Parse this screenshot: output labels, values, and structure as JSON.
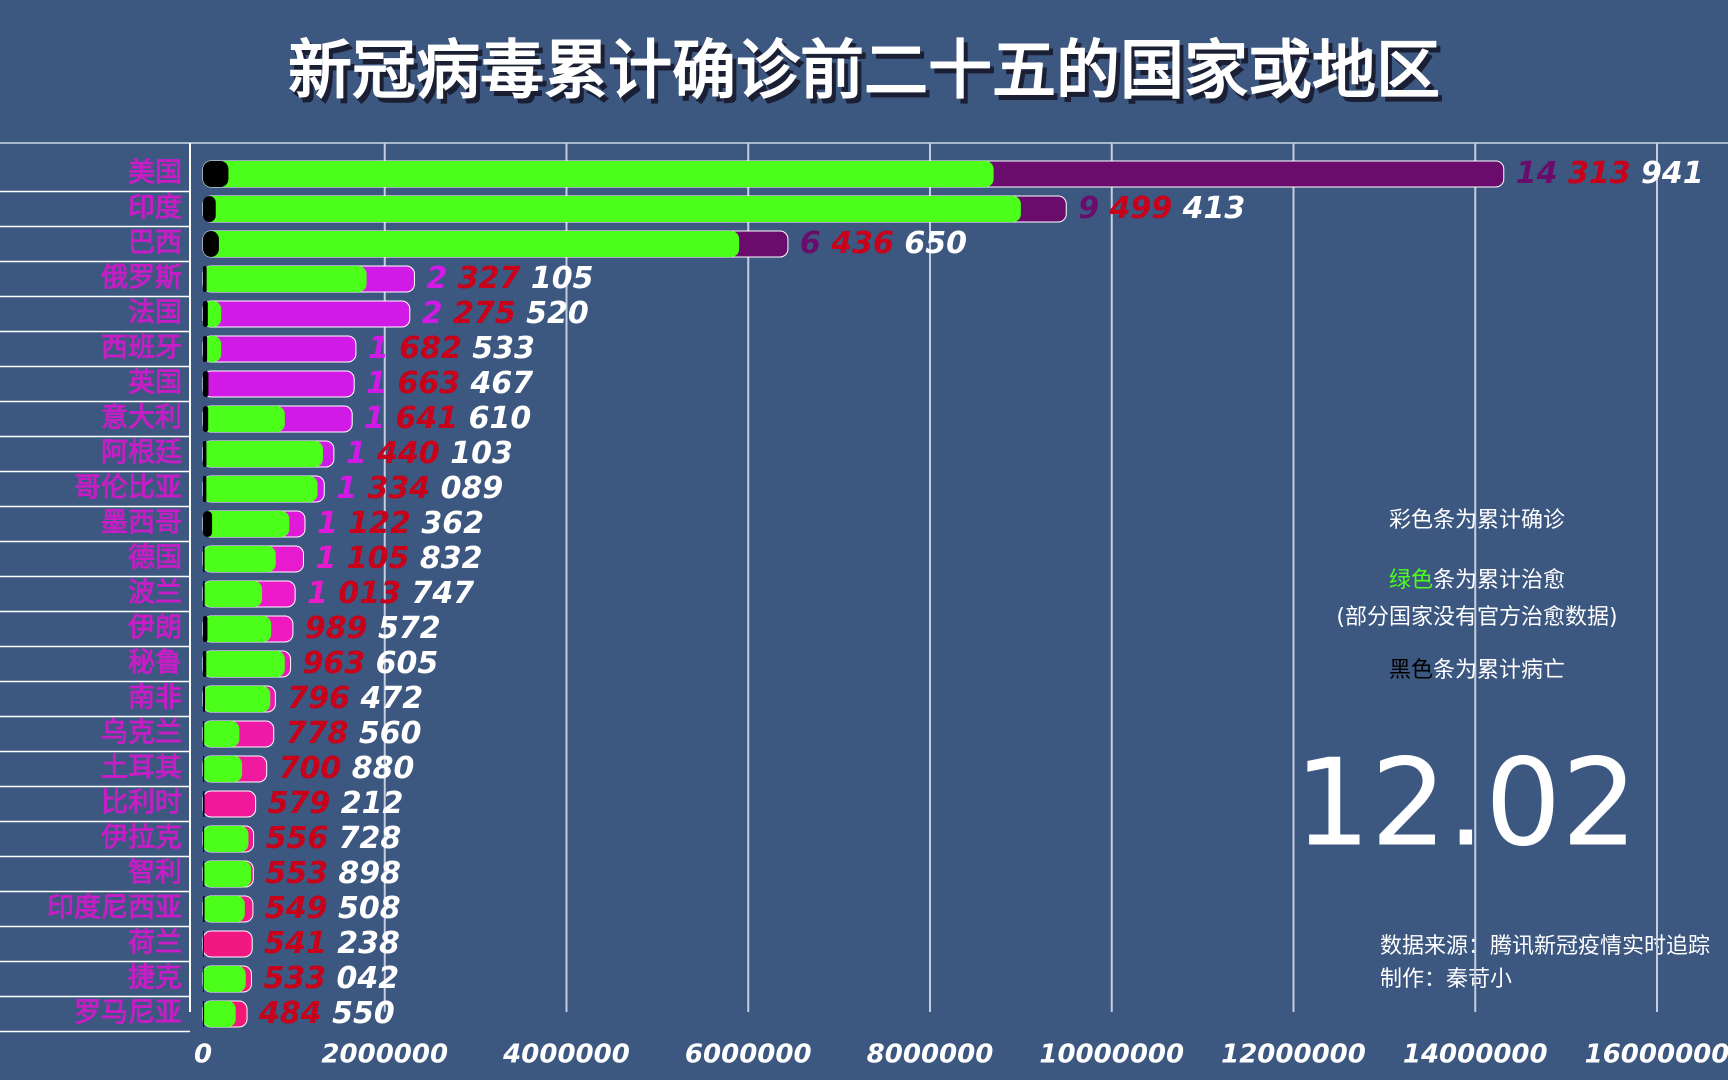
{
  "chart_data": {
    "type": "bar",
    "orientation": "horizontal",
    "title": "新冠病毒累计确诊前二十五的国家或地区",
    "categories": [
      "美国",
      "印度",
      "巴西",
      "俄罗斯",
      "法国",
      "西班牙",
      "英国",
      "意大利",
      "阿根廷",
      "哥伦比亚",
      "墨西哥",
      "德国",
      "波兰",
      "伊朗",
      "秘鲁",
      "南非",
      "乌克兰",
      "土耳其",
      "比利时",
      "伊拉克",
      "智利",
      "印度尼西亚",
      "荷兰",
      "捷克",
      "罗马尼亚"
    ],
    "series": [
      {
        "name": "彩色条为累计确诊",
        "values": [
          14313941,
          9499413,
          6436650,
          2327105,
          2275520,
          1682533,
          1663467,
          1641610,
          1440103,
          1334089,
          1122362,
          1105832,
          1013747,
          989572,
          963605,
          796472,
          778560,
          700880,
          579212,
          556728,
          553898,
          549508,
          541238,
          533042,
          484550
        ],
        "value_labels": [
          "14 313 941",
          "9 499 413",
          "6 436 650",
          "2 327 105",
          "2 275 520",
          "1 682 533",
          "1 663 467",
          "1 641 610",
          "1 440 103",
          "1 334 089",
          "1 122 362",
          "1 105 832",
          "1 013 747",
          "989 572",
          "963 605",
          "796 472",
          "778 560",
          "700 880",
          "579 212",
          "556 728",
          "553 898",
          "549 508",
          "541 238",
          "533 042",
          "484 550"
        ],
        "colors": [
          "#6a0c6c",
          "#6a0c6c",
          "#6a0c6c",
          "#d21ae6",
          "#d21ae6",
          "#d21ae6",
          "#d21ae6",
          "#d21ae6",
          "#d21ae6",
          "#d21ae6",
          "#e01ad8",
          "#e81ad0",
          "#ec1ac8",
          "#ee1ac0",
          "#ee1ab8",
          "#f01ab0",
          "#f01aa8",
          "#f01aa0",
          "#f2189a",
          "#f21894",
          "#f2188e",
          "#f21888",
          "#f21882",
          "#f2187c",
          "#f21876"
        ]
      },
      {
        "name": "绿色条为累计治愈",
        "color": "#4cff1a",
        "values": [
          8700000,
          9000000,
          5900000,
          1800000,
          200000,
          200000,
          0,
          900000,
          1320000,
          1260000,
          950000,
          800000,
          650000,
          750000,
          900000,
          740000,
          400000,
          430000,
          0,
          500000,
          530000,
          460000,
          0,
          470000,
          360000
        ]
      },
      {
        "name": "黑色条为累计病亡",
        "color": "#000000",
        "values": [
          280000,
          140000,
          175000,
          40000,
          53000,
          45000,
          60000,
          57000,
          38000,
          37000,
          100000,
          17000,
          18000,
          49000,
          36000,
          22000,
          13000,
          13000,
          17000,
          12000,
          15000,
          17000,
          9000,
          8000,
          12000
        ]
      }
    ],
    "note": "(部分国家没有官方治愈数据)",
    "date": "12.02",
    "source": [
      "数据来源：腾讯新冠疫情实时追踪",
      "制作：秦苛小"
    ],
    "xlim": [
      0,
      16000000
    ],
    "xticks": [
      0,
      2000000,
      4000000,
      6000000,
      8000000,
      10000000,
      12000000,
      14000000,
      16000000
    ],
    "grid": true
  }
}
